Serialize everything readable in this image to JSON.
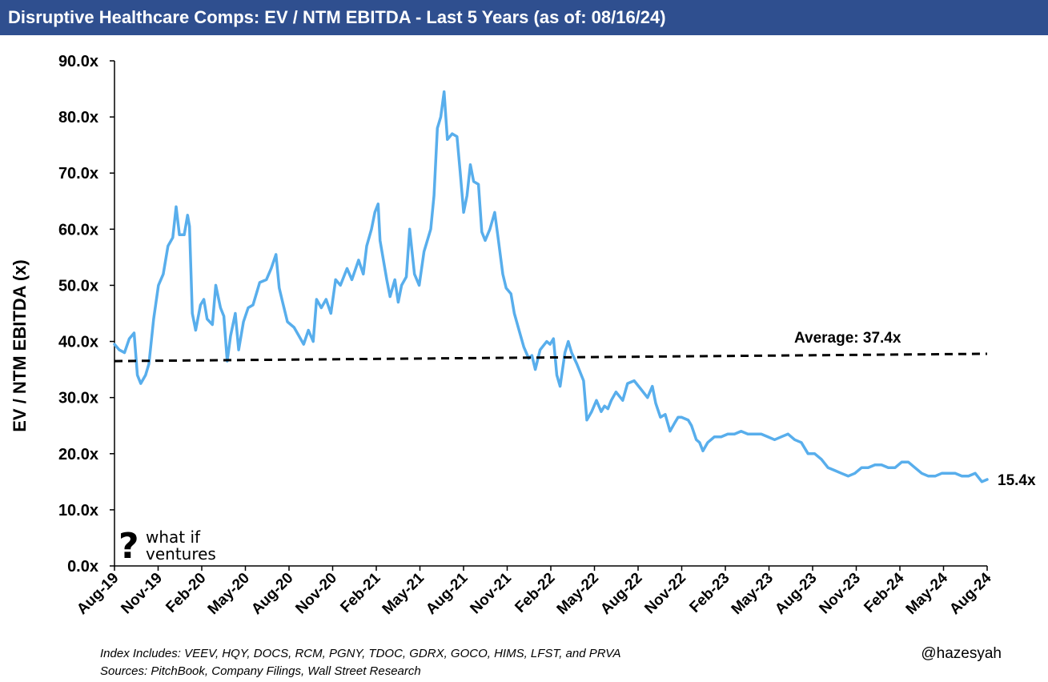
{
  "header": {
    "title": "Disruptive Healthcare Comps: EV / NTM EBITDA - Last 5 Years (as of: 08/16/24)"
  },
  "footer": {
    "index_note": "Index Includes: VEEV, HQY, DOCS, RCM, PGNY, TDOC, GDRX, GOCO, HIMS, LFST, and PRVA",
    "sources_note": "Sources: PitchBook, Company Filings, Wall Street Research",
    "handle": "@hazesyah"
  },
  "logo": {
    "line1": "what if",
    "line2": "ventures"
  },
  "colors": {
    "title_bg": "#2f4f8f",
    "series": "#58aeec",
    "average": "#000000"
  },
  "chart_data": {
    "type": "line",
    "title": "Disruptive Healthcare Comps: EV / NTM EBITDA - Last 5 Years (as of: 08/16/24)",
    "ylabel": "EV / NTM EBITDA (x)",
    "xlabel": "",
    "ylim": [
      0,
      90
    ],
    "y_ticks": [
      "0.0x",
      "10.0x",
      "20.0x",
      "30.0x",
      "40.0x",
      "50.0x",
      "60.0x",
      "70.0x",
      "80.0x",
      "90.0x"
    ],
    "x_ticks": [
      "Aug-19",
      "Nov-19",
      "Feb-20",
      "May-20",
      "Aug-20",
      "Nov-20",
      "Feb-21",
      "May-21",
      "Aug-21",
      "Nov-21",
      "Feb-22",
      "May-22",
      "Aug-22",
      "Nov-22",
      "Feb-23",
      "May-23",
      "Aug-23",
      "Nov-23",
      "Feb-24",
      "May-24",
      "Aug-24"
    ],
    "x_range": [
      "2019-08-16",
      "2024-08-16"
    ],
    "grid": false,
    "legend": "none",
    "series": [
      {
        "points": [
          [
            "2019-08-16",
            39.5
          ],
          [
            "2019-08-26",
            38.5
          ],
          [
            "2019-09-06",
            38.0
          ],
          [
            "2019-09-16",
            40.5
          ],
          [
            "2019-09-26",
            41.5
          ],
          [
            "2019-10-03",
            34.0
          ],
          [
            "2019-10-10",
            32.5
          ],
          [
            "2019-10-20",
            34.0
          ],
          [
            "2019-10-27",
            36.0
          ],
          [
            "2019-11-06",
            44.0
          ],
          [
            "2019-11-16",
            50.0
          ],
          [
            "2019-11-26",
            52.0
          ],
          [
            "2019-12-06",
            57.0
          ],
          [
            "2019-12-16",
            58.5
          ],
          [
            "2019-12-23",
            64.0
          ],
          [
            "2019-12-30",
            59.0
          ],
          [
            "2020-01-09",
            59.0
          ],
          [
            "2020-01-16",
            62.5
          ],
          [
            "2020-01-20",
            60.5
          ],
          [
            "2020-01-26",
            45.0
          ],
          [
            "2020-02-02",
            42.0
          ],
          [
            "2020-02-12",
            46.5
          ],
          [
            "2020-02-19",
            47.5
          ],
          [
            "2020-02-26",
            44.0
          ],
          [
            "2020-03-08",
            43.0
          ],
          [
            "2020-03-15",
            50.0
          ],
          [
            "2020-03-25",
            46.0
          ],
          [
            "2020-04-01",
            44.5
          ],
          [
            "2020-04-08",
            36.5
          ],
          [
            "2020-04-15",
            41.0
          ],
          [
            "2020-04-25",
            45.0
          ],
          [
            "2020-05-02",
            38.5
          ],
          [
            "2020-05-12",
            43.5
          ],
          [
            "2020-05-22",
            46.0
          ],
          [
            "2020-06-01",
            46.5
          ],
          [
            "2020-06-15",
            50.5
          ],
          [
            "2020-06-29",
            51.0
          ],
          [
            "2020-07-09",
            53.0
          ],
          [
            "2020-07-19",
            55.5
          ],
          [
            "2020-07-26",
            49.5
          ],
          [
            "2020-08-02",
            47.0
          ],
          [
            "2020-08-12",
            43.5
          ],
          [
            "2020-08-26",
            42.5
          ],
          [
            "2020-09-05",
            41.0
          ],
          [
            "2020-09-15",
            39.5
          ],
          [
            "2020-09-25",
            42.0
          ],
          [
            "2020-10-05",
            40.0
          ],
          [
            "2020-10-12",
            47.5
          ],
          [
            "2020-10-22",
            46.0
          ],
          [
            "2020-11-01",
            47.5
          ],
          [
            "2020-11-11",
            45.0
          ],
          [
            "2020-11-21",
            51.0
          ],
          [
            "2020-12-01",
            50.0
          ],
          [
            "2020-12-15",
            53.0
          ],
          [
            "2020-12-25",
            51.0
          ],
          [
            "2021-01-08",
            54.5
          ],
          [
            "2021-01-18",
            52.0
          ],
          [
            "2021-01-25",
            57.0
          ],
          [
            "2021-02-04",
            60.0
          ],
          [
            "2021-02-11",
            63.0
          ],
          [
            "2021-02-18",
            64.5
          ],
          [
            "2021-02-22",
            58.0
          ],
          [
            "2021-03-08",
            51.0
          ],
          [
            "2021-03-15",
            48.0
          ],
          [
            "2021-03-25",
            51.0
          ],
          [
            "2021-04-01",
            47.0
          ],
          [
            "2021-04-08",
            50.0
          ],
          [
            "2021-04-18",
            51.5
          ],
          [
            "2021-04-25",
            60.0
          ],
          [
            "2021-05-05",
            52.0
          ],
          [
            "2021-05-15",
            50.0
          ],
          [
            "2021-05-25",
            56.0
          ],
          [
            "2021-06-08",
            60.0
          ],
          [
            "2021-06-15",
            66.0
          ],
          [
            "2021-06-22",
            78.0
          ],
          [
            "2021-06-29",
            80.0
          ],
          [
            "2021-07-06",
            84.5
          ],
          [
            "2021-07-13",
            76.0
          ],
          [
            "2021-07-23",
            77.0
          ],
          [
            "2021-08-02",
            76.5
          ],
          [
            "2021-08-09",
            70.0
          ],
          [
            "2021-08-16",
            63.0
          ],
          [
            "2021-08-23",
            66.0
          ],
          [
            "2021-08-30",
            71.5
          ],
          [
            "2021-09-06",
            68.5
          ],
          [
            "2021-09-16",
            68.0
          ],
          [
            "2021-09-23",
            59.5
          ],
          [
            "2021-09-30",
            58.0
          ],
          [
            "2021-10-10",
            60.0
          ],
          [
            "2021-10-20",
            63.0
          ],
          [
            "2021-10-27",
            58.5
          ],
          [
            "2021-11-06",
            52.0
          ],
          [
            "2021-11-13",
            49.5
          ],
          [
            "2021-11-23",
            48.5
          ],
          [
            "2021-11-30",
            45.0
          ],
          [
            "2021-12-10",
            42.0
          ],
          [
            "2021-12-20",
            39.0
          ],
          [
            "2021-12-30",
            37.0
          ],
          [
            "2022-01-06",
            37.5
          ],
          [
            "2022-01-13",
            35.0
          ],
          [
            "2022-01-23",
            38.5
          ],
          [
            "2022-02-06",
            40.0
          ],
          [
            "2022-02-13",
            39.5
          ],
          [
            "2022-02-20",
            40.5
          ],
          [
            "2022-02-27",
            34.0
          ],
          [
            "2022-03-06",
            32.0
          ],
          [
            "2022-03-16",
            38.0
          ],
          [
            "2022-03-23",
            40.0
          ],
          [
            "2022-03-30",
            38.0
          ],
          [
            "2022-04-10",
            36.0
          ],
          [
            "2022-04-24",
            33.0
          ],
          [
            "2022-05-01",
            26.0
          ],
          [
            "2022-05-11",
            27.5
          ],
          [
            "2022-05-21",
            29.5
          ],
          [
            "2022-05-31",
            27.5
          ],
          [
            "2022-06-07",
            28.5
          ],
          [
            "2022-06-14",
            28.0
          ],
          [
            "2022-06-21",
            29.5
          ],
          [
            "2022-07-01",
            31.0
          ],
          [
            "2022-07-15",
            29.5
          ],
          [
            "2022-07-25",
            32.5
          ],
          [
            "2022-08-08",
            33.0
          ],
          [
            "2022-08-22",
            31.5
          ],
          [
            "2022-09-05",
            30.0
          ],
          [
            "2022-09-15",
            32.0
          ],
          [
            "2022-09-22",
            29.0
          ],
          [
            "2022-10-02",
            26.5
          ],
          [
            "2022-10-12",
            27.0
          ],
          [
            "2022-10-22",
            24.0
          ],
          [
            "2022-11-01",
            25.5
          ],
          [
            "2022-11-08",
            26.5
          ],
          [
            "2022-11-15",
            26.5
          ],
          [
            "2022-11-29",
            26.0
          ],
          [
            "2022-12-06",
            25.0
          ],
          [
            "2022-12-16",
            22.5
          ],
          [
            "2022-12-23",
            22.0
          ],
          [
            "2022-12-30",
            20.5
          ],
          [
            "2023-01-09",
            22.0
          ],
          [
            "2023-01-23",
            23.0
          ],
          [
            "2023-02-06",
            23.0
          ],
          [
            "2023-02-20",
            23.5
          ],
          [
            "2023-03-06",
            23.5
          ],
          [
            "2023-03-20",
            24.0
          ],
          [
            "2023-04-03",
            23.5
          ],
          [
            "2023-04-17",
            23.5
          ],
          [
            "2023-05-01",
            23.5
          ],
          [
            "2023-05-15",
            23.0
          ],
          [
            "2023-05-29",
            22.5
          ],
          [
            "2023-06-12",
            23.0
          ],
          [
            "2023-06-26",
            23.5
          ],
          [
            "2023-07-10",
            22.5
          ],
          [
            "2023-07-24",
            22.0
          ],
          [
            "2023-08-07",
            20.0
          ],
          [
            "2023-08-21",
            20.0
          ],
          [
            "2023-09-04",
            19.0
          ],
          [
            "2023-09-18",
            17.5
          ],
          [
            "2023-10-02",
            17.0
          ],
          [
            "2023-10-16",
            16.5
          ],
          [
            "2023-10-30",
            16.0
          ],
          [
            "2023-11-13",
            16.5
          ],
          [
            "2023-11-27",
            17.5
          ],
          [
            "2023-12-11",
            17.5
          ],
          [
            "2023-12-25",
            18.0
          ],
          [
            "2024-01-08",
            18.0
          ],
          [
            "2024-01-22",
            17.5
          ],
          [
            "2024-02-05",
            17.5
          ],
          [
            "2024-02-19",
            18.5
          ],
          [
            "2024-03-04",
            18.5
          ],
          [
            "2024-03-18",
            17.5
          ],
          [
            "2024-04-01",
            16.5
          ],
          [
            "2024-04-15",
            16.0
          ],
          [
            "2024-04-29",
            16.0
          ],
          [
            "2024-05-13",
            16.5
          ],
          [
            "2024-05-27",
            16.5
          ],
          [
            "2024-06-10",
            16.5
          ],
          [
            "2024-06-24",
            16.0
          ],
          [
            "2024-07-08",
            16.0
          ],
          [
            "2024-07-22",
            16.5
          ],
          [
            "2024-08-05",
            15.0
          ],
          [
            "2024-08-16",
            15.4
          ]
        ]
      }
    ],
    "average": {
      "label": "Average: 37.4x",
      "start": [
        "2019-08-16",
        36.5
      ],
      "end": [
        "2024-08-16",
        37.8
      ]
    },
    "last_value_label": "15.4x"
  }
}
